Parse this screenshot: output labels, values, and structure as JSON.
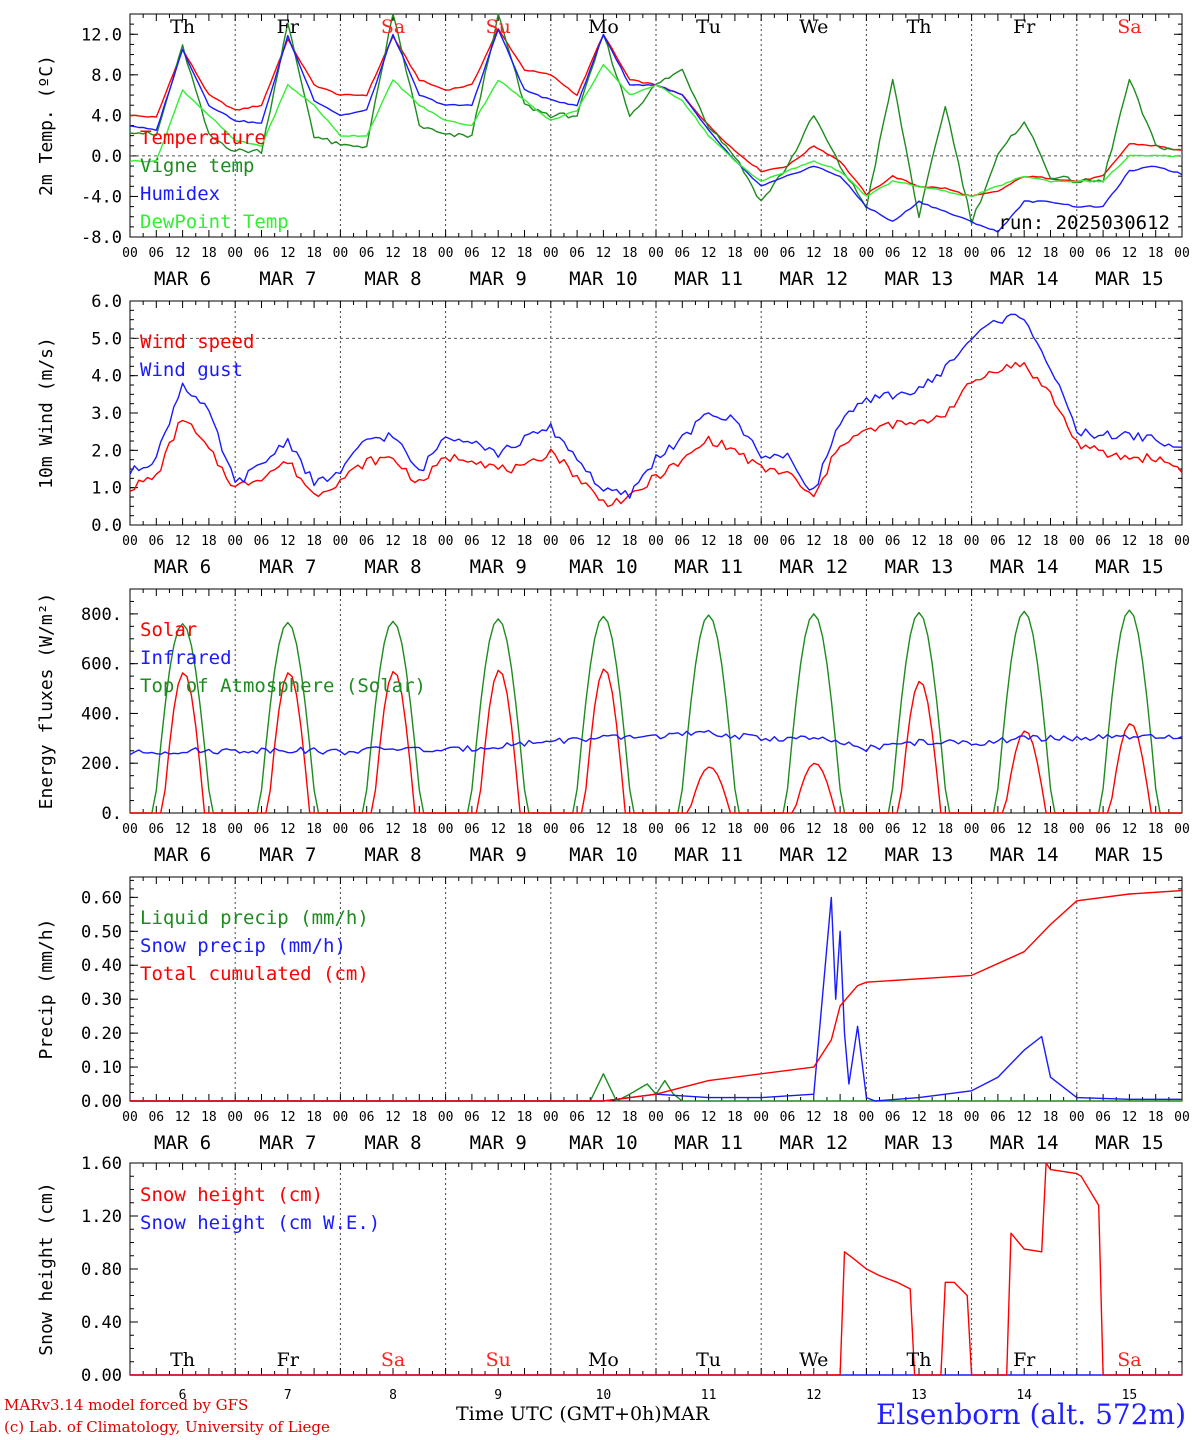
{
  "footer": {
    "credit_line1": "MARv3.14 model forced by GFS",
    "credit_line2": "(c) Lab. of Climatology, University of Liege",
    "x_axis_title": "Time UTC (GMT+0h)",
    "month": "MAR",
    "station": "Elsenborn (alt. 572m)"
  },
  "colors": {
    "red": "#ff0000",
    "blue": "#1a1aff",
    "green": "#1e8b1e",
    "lightgreen": "#33ee33",
    "weekend": "#ff2020"
  },
  "chart_data": [
    {
      "id": "temperature",
      "type": "line",
      "ylabel": "2m Temp. (ºC)",
      "ylim": [
        -8,
        14
      ],
      "yticks": [
        "-8.0",
        "-4.0",
        "0.0",
        "4.0",
        "8.0",
        "12.0"
      ],
      "ytick_values": [
        -8,
        -4,
        0,
        4,
        8,
        12
      ],
      "reference_line": 0,
      "annotation": "run: 2025030612",
      "days": [
        "Th",
        "Fr",
        "Sa",
        "Su",
        "Mo",
        "Tu",
        "We",
        "Th",
        "Fr",
        "Sa"
      ],
      "x_hours": [
        0,
        12,
        24,
        36,
        48,
        60,
        72,
        84,
        96,
        108,
        120,
        132,
        144,
        156,
        168,
        180,
        192,
        204,
        216,
        228,
        240
      ],
      "series": [
        {
          "name": "Temperature",
          "color": "#ff0000",
          "x": [
            0,
            6,
            12,
            18,
            24,
            30,
            36,
            42,
            48,
            54,
            60,
            66,
            72,
            78,
            84,
            90,
            96,
            102,
            108,
            114,
            120,
            126,
            132,
            138,
            144,
            150,
            156,
            162,
            168,
            174,
            180,
            186,
            192,
            198,
            204,
            210,
            216,
            222,
            228,
            234,
            240
          ],
          "values": [
            4.0,
            3.8,
            10.5,
            6.0,
            4.5,
            5.0,
            11.5,
            7.0,
            6.0,
            6.0,
            11.8,
            7.5,
            6.5,
            7.0,
            12.5,
            8.5,
            8.0,
            6.0,
            12.0,
            7.5,
            7.0,
            6.0,
            3.0,
            0.5,
            -1.5,
            -1.0,
            1.0,
            -0.5,
            -3.8,
            -2.0,
            -3.0,
            -3.2,
            -4.0,
            -3.5,
            -2.0,
            -2.2,
            -2.5,
            -2.0,
            1.2,
            1.0,
            0.5
          ]
        },
        {
          "name": "Vigne temp",
          "color": "#1e8b1e",
          "x": [
            0,
            6,
            12,
            18,
            24,
            30,
            36,
            42,
            48,
            54,
            60,
            66,
            72,
            78,
            84,
            90,
            96,
            102,
            108,
            114,
            120,
            126,
            132,
            138,
            144,
            150,
            156,
            162,
            168,
            174,
            180,
            186,
            192,
            198,
            204,
            210,
            216,
            222,
            228,
            234,
            240
          ],
          "values": [
            2.5,
            2.0,
            10.8,
            2.0,
            0.5,
            0.5,
            13.0,
            2.0,
            1.0,
            1.0,
            14.0,
            3.0,
            2.0,
            2.0,
            14.0,
            5.0,
            4.0,
            4.0,
            12.0,
            4.0,
            7.0,
            8.5,
            3.0,
            0.0,
            -4.5,
            -1.0,
            4.0,
            -1.0,
            -5.0,
            7.5,
            -6.0,
            5.0,
            -6.5,
            0.0,
            3.5,
            -2.0,
            -2.5,
            -2.5,
            7.5,
            1.0,
            0.5
          ]
        },
        {
          "name": "Humidex",
          "color": "#1a1aff",
          "x": [
            0,
            6,
            12,
            18,
            24,
            30,
            36,
            42,
            48,
            54,
            60,
            66,
            72,
            78,
            84,
            90,
            96,
            102,
            108,
            114,
            120,
            126,
            132,
            138,
            144,
            150,
            156,
            162,
            168,
            174,
            180,
            186,
            192,
            198,
            204,
            210,
            216,
            222,
            228,
            234,
            240
          ],
          "values": [
            3.0,
            2.5,
            10.5,
            5.0,
            3.5,
            3.2,
            11.8,
            5.5,
            4.0,
            4.5,
            12.0,
            6.0,
            5.0,
            5.0,
            12.5,
            6.5,
            5.5,
            5.0,
            12.0,
            7.0,
            7.0,
            6.0,
            2.5,
            -0.5,
            -3.0,
            -2.0,
            -1.0,
            -2.0,
            -5.0,
            -6.5,
            -4.5,
            -5.5,
            -6.5,
            -7.5,
            -4.5,
            -4.5,
            -5.0,
            -5.0,
            -1.5,
            -1.0,
            -1.8
          ]
        },
        {
          "name": "DewPoint Temp",
          "color": "#33ee33",
          "x": [
            0,
            6,
            12,
            18,
            24,
            30,
            36,
            42,
            48,
            54,
            60,
            66,
            72,
            78,
            84,
            90,
            96,
            102,
            108,
            114,
            120,
            126,
            132,
            138,
            144,
            150,
            156,
            162,
            168,
            174,
            180,
            186,
            192,
            198,
            204,
            210,
            216,
            222,
            228,
            234,
            240
          ],
          "values": [
            -0.5,
            -0.5,
            6.5,
            4.0,
            1.5,
            1.0,
            7.0,
            5.0,
            2.0,
            2.0,
            7.5,
            5.0,
            3.5,
            3.0,
            7.5,
            5.5,
            3.5,
            4.5,
            9.0,
            6.0,
            7.0,
            5.5,
            2.0,
            -0.5,
            -2.5,
            -1.5,
            -0.5,
            -1.5,
            -4.0,
            -2.5,
            -3.0,
            -3.5,
            -4.0,
            -3.0,
            -2.0,
            -2.5,
            -2.5,
            -2.5,
            0.0,
            0.0,
            0.0
          ]
        }
      ]
    },
    {
      "id": "wind",
      "type": "line",
      "ylabel": "10m Wind (m/s)",
      "ylim": [
        0,
        6
      ],
      "yticks": [
        "0.0",
        "1.0",
        "2.0",
        "3.0",
        "4.0",
        "5.0",
        "6.0"
      ],
      "ytick_values": [
        0,
        1,
        2,
        3,
        4,
        5,
        6
      ],
      "reference_line": 5,
      "series": [
        {
          "name": "Wind speed",
          "color": "#ff0000",
          "x": [
            0,
            6,
            12,
            18,
            24,
            30,
            36,
            42,
            48,
            54,
            60,
            66,
            72,
            78,
            84,
            90,
            96,
            102,
            108,
            114,
            120,
            126,
            132,
            138,
            144,
            150,
            156,
            162,
            168,
            174,
            180,
            186,
            192,
            198,
            204,
            210,
            216,
            222,
            228,
            234,
            240
          ],
          "values": [
            1.0,
            1.3,
            2.9,
            2.0,
            1.0,
            1.3,
            1.7,
            0.8,
            1.2,
            1.7,
            1.8,
            1.1,
            1.8,
            1.8,
            1.5,
            1.5,
            2.0,
            1.3,
            0.6,
            0.7,
            1.3,
            1.7,
            2.3,
            2.0,
            1.5,
            1.4,
            0.7,
            2.2,
            2.5,
            2.7,
            2.7,
            3.0,
            3.8,
            4.2,
            4.3,
            3.5,
            2.2,
            1.9,
            1.8,
            1.8,
            1.5
          ]
        },
        {
          "name": "Wind gust",
          "color": "#1a1aff",
          "x": [
            0,
            6,
            12,
            18,
            24,
            30,
            36,
            42,
            48,
            54,
            60,
            66,
            72,
            78,
            84,
            90,
            96,
            102,
            108,
            114,
            120,
            126,
            132,
            138,
            144,
            150,
            156,
            162,
            168,
            174,
            180,
            186,
            192,
            198,
            204,
            210,
            216,
            222,
            228,
            234,
            240
          ],
          "values": [
            1.4,
            1.8,
            3.8,
            3.0,
            1.1,
            1.6,
            2.3,
            1.1,
            1.4,
            2.3,
            2.4,
            1.4,
            2.4,
            2.3,
            1.9,
            2.3,
            2.6,
            1.8,
            0.9,
            0.8,
            1.8,
            2.3,
            3.0,
            2.8,
            1.9,
            1.8,
            0.9,
            2.8,
            3.3,
            3.5,
            3.6,
            4.2,
            5.0,
            5.5,
            5.6,
            4.2,
            2.5,
            2.4,
            2.4,
            2.3,
            2.0
          ]
        }
      ]
    },
    {
      "id": "energy",
      "type": "line",
      "ylabel": "Energy fluxes (W/m²)",
      "ylim": [
        0,
        900
      ],
      "yticks": [
        "0.",
        "200.",
        "400.",
        "600.",
        "800."
      ],
      "ytick_values": [
        0,
        200,
        400,
        600,
        800
      ],
      "series": [
        {
          "name": "Solar",
          "color": "#ff0000",
          "diurnal_peaks": [
            565,
            565,
            570,
            575,
            580,
            185,
            200,
            530,
            330,
            360
          ]
        },
        {
          "name": "Infrared",
          "color": "#1a1aff",
          "x": [
            0,
            12,
            24,
            36,
            48,
            60,
            72,
            84,
            96,
            108,
            120,
            132,
            144,
            156,
            168,
            180,
            192,
            204,
            216,
            228,
            240
          ],
          "values": [
            240,
            250,
            250,
            255,
            245,
            260,
            250,
            270,
            290,
            300,
            310,
            320,
            300,
            300,
            260,
            285,
            280,
            300,
            300,
            305,
            300
          ]
        },
        {
          "name": "Top of Atmosphere (Solar)",
          "color": "#1e8b1e",
          "diurnal_peaks": [
            760,
            765,
            770,
            780,
            790,
            795,
            800,
            805,
            810,
            815
          ]
        }
      ]
    },
    {
      "id": "precip",
      "type": "line",
      "ylabel": "Precip (mm/h)",
      "ylim": [
        0,
        0.66
      ],
      "yticks": [
        "0.00",
        "0.10",
        "0.20",
        "0.30",
        "0.40",
        "0.50",
        "0.60"
      ],
      "ytick_values": [
        0,
        0.1,
        0.2,
        0.3,
        0.4,
        0.5,
        0.6
      ],
      "series": [
        {
          "name": "Liquid precip (mm/h)",
          "color": "#1e8b1e",
          "x": [
            0,
            96,
            105,
            108,
            111,
            114,
            118,
            120,
            122,
            124,
            126,
            130,
            240
          ],
          "values": [
            0,
            0,
            0,
            0.08,
            0,
            0.02,
            0.05,
            0.02,
            0.06,
            0.02,
            0,
            0,
            0
          ]
        },
        {
          "name": "Snow precip (mm/h)",
          "color": "#1a1aff",
          "x": [
            0,
            108,
            120,
            132,
            144,
            156,
            160,
            161,
            162,
            163,
            164,
            166,
            168,
            170,
            180,
            192,
            198,
            204,
            208,
            210,
            216,
            228,
            240
          ],
          "values": [
            0,
            0,
            0.02,
            0.01,
            0.01,
            0.02,
            0.6,
            0.3,
            0.5,
            0.2,
            0.05,
            0.22,
            0.01,
            0,
            0.01,
            0.03,
            0.07,
            0.15,
            0.19,
            0.07,
            0.01,
            0.005,
            0.005
          ]
        },
        {
          "name": "Total cumulated (cm)",
          "color": "#ff0000",
          "x": [
            0,
            108,
            120,
            132,
            144,
            156,
            160,
            162,
            166,
            168,
            180,
            192,
            204,
            210,
            216,
            228,
            240
          ],
          "values": [
            0,
            0,
            0.02,
            0.06,
            0.08,
            0.1,
            0.18,
            0.28,
            0.34,
            0.35,
            0.36,
            0.37,
            0.44,
            0.52,
            0.59,
            0.61,
            0.62
          ]
        }
      ]
    },
    {
      "id": "snow",
      "type": "line",
      "ylabel": "Snow height (cm)",
      "ylim": [
        0,
        1.6
      ],
      "yticks": [
        "0.00",
        "0.40",
        "0.80",
        "1.20",
        "1.60"
      ],
      "ytick_values": [
        0,
        0.4,
        0.8,
        1.2,
        1.6
      ],
      "day_labels": [
        "Th",
        "Fr",
        "Sa",
        "Su",
        "Mo",
        "Tu",
        "We",
        "Th",
        "Fr",
        "Sa"
      ],
      "day_numbers": [
        "6",
        "7",
        "8",
        "9",
        "10",
        "11",
        "12",
        "13",
        "14",
        "15"
      ],
      "series": [
        {
          "name": "Snow height (cm)",
          "color": "#ff0000",
          "x": [
            0,
            162,
            163,
            165,
            168,
            171,
            175,
            178,
            179,
            185,
            186,
            188,
            191,
            192,
            194,
            200,
            201,
            204,
            208,
            209,
            210,
            216,
            217,
            221,
            222,
            240
          ],
          "values": [
            0,
            0,
            0.93,
            0.88,
            0.8,
            0.75,
            0.7,
            0.65,
            0,
            0,
            0.7,
            0.7,
            0.6,
            0,
            0,
            0,
            1.07,
            0.95,
            0.93,
            1.6,
            1.55,
            1.52,
            1.5,
            1.28,
            0,
            0
          ]
        },
        {
          "name": "Snow height (cm W.E.)",
          "color": "#1a1aff",
          "x": [
            0,
            240
          ],
          "values": [
            0,
            0
          ]
        }
      ]
    }
  ],
  "x_axis": {
    "hour_ticks": [
      "00",
      "06",
      "12",
      "18"
    ],
    "end_tick": "00",
    "date_labels": [
      "MAR 6",
      "MAR 7",
      "MAR 8",
      "MAR 9",
      "MAR 10",
      "MAR 11",
      "MAR 12",
      "MAR 13",
      "MAR 14",
      "MAR 15"
    ]
  }
}
